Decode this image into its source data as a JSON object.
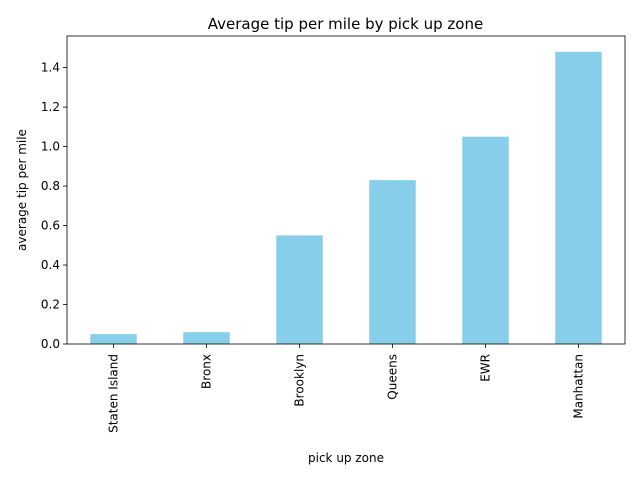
{
  "chart_data": {
    "type": "bar",
    "title": "Average tip per mile by pick up zone",
    "xlabel": "pick up zone",
    "ylabel": "average tip per mile",
    "categories": [
      "Staten Island",
      "Bronx",
      "Brooklyn",
      "Queens",
      "EWR",
      "Manhattan"
    ],
    "values": [
      0.05,
      0.06,
      0.55,
      0.83,
      1.05,
      1.48
    ],
    "ylim": [
      0,
      1.56
    ],
    "yticks": [
      0.0,
      0.2,
      0.4,
      0.6,
      0.8,
      1.0,
      1.2,
      1.4
    ],
    "ytick_labels": [
      "0.0",
      "0.2",
      "0.4",
      "0.6",
      "0.8",
      "1.0",
      "1.2",
      "1.4"
    ],
    "bar_color": "#87CEEB",
    "grid": false,
    "legend": "none"
  }
}
